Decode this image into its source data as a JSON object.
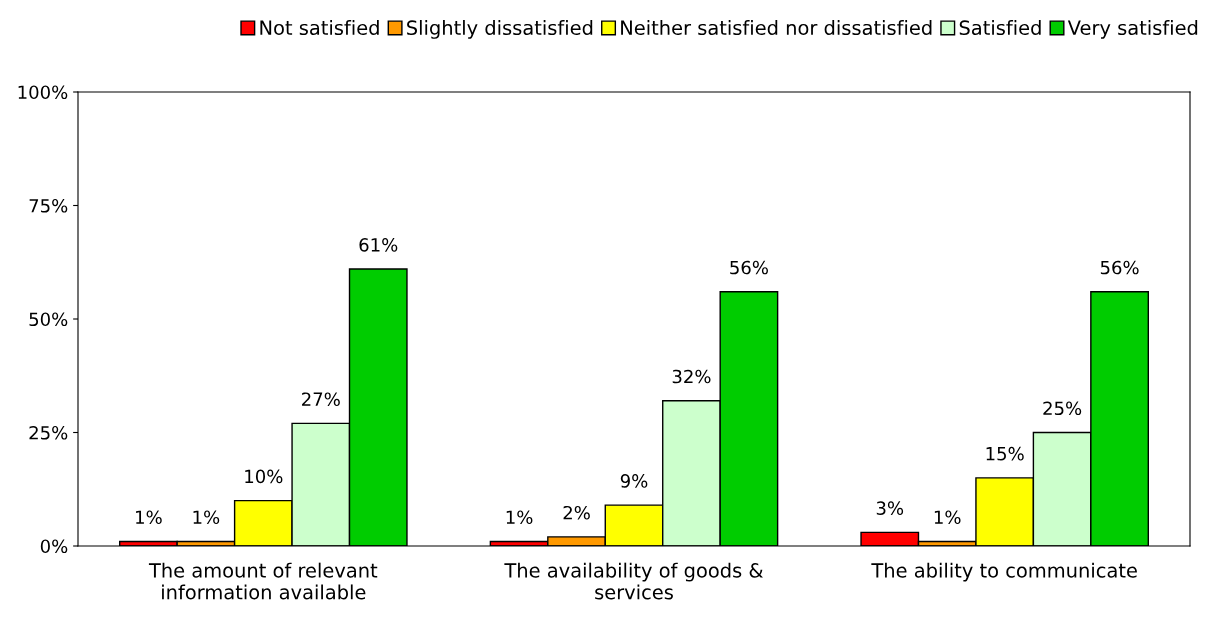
{
  "chart_data": {
    "type": "bar",
    "categories": [
      "The amount of relevant\ninformation available",
      "The availability of goods &\nservices",
      "The ability to communicate"
    ],
    "series": [
      {
        "name": "Not satisfied",
        "color": "#ff0000",
        "values": [
          1,
          1,
          3
        ],
        "value_labels": [
          "1%",
          "1%",
          "3%"
        ]
      },
      {
        "name": "Slightly dissatisfied",
        "color": "#ff9900",
        "values": [
          1,
          2,
          1
        ],
        "value_labels": [
          "1%",
          "2%",
          "1%"
        ]
      },
      {
        "name": "Neither satisfied nor dissatisfied",
        "color": "#ffff00",
        "values": [
          10,
          9,
          15
        ],
        "value_labels": [
          "10%",
          "9%",
          "15%"
        ]
      },
      {
        "name": "Satisfied",
        "color": "#ccffcc",
        "values": [
          27,
          32,
          25
        ],
        "value_labels": [
          "27%",
          "32%",
          "25%"
        ]
      },
      {
        "name": "Very satisfied",
        "color": "#00cc00",
        "values": [
          61,
          56,
          56
        ],
        "value_labels": [
          "61%",
          "56%",
          "56%"
        ]
      }
    ],
    "ylim": [
      0,
      100
    ],
    "yticks": [
      {
        "value": 0,
        "label": "0%"
      },
      {
        "value": 25,
        "label": "25%"
      },
      {
        "value": 50,
        "label": "50%"
      },
      {
        "value": 75,
        "label": "75%"
      },
      {
        "value": 100,
        "label": "100%"
      }
    ],
    "grid": false,
    "legend": "top right"
  }
}
